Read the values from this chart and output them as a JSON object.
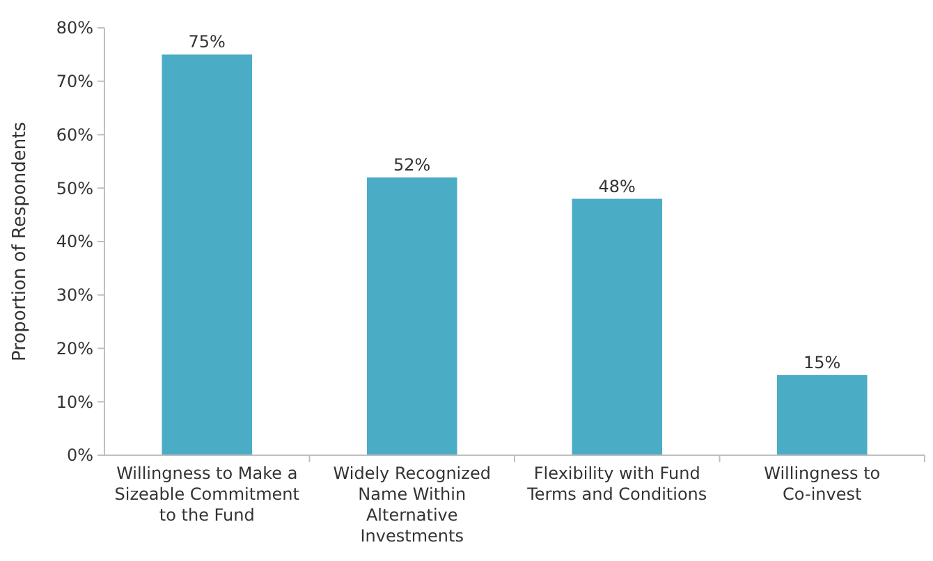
{
  "chart_data": {
    "type": "bar",
    "ylabel": "Proportion of Respondents",
    "categories": [
      "Willingness to Make a Sizeable Commitment to the Fund",
      "Widely Recognized Name Within Alternative Investments",
      "Flexibility with Fund Terms and Conditions",
      "Willingness to Co-invest"
    ],
    "values": [
      75,
      52,
      48,
      15
    ],
    "color": "#4bacc6",
    "value_labels": [
      "75%",
      "52%",
      "48%",
      "15%"
    ],
    "ylim": [
      0,
      80
    ],
    "yticks": [
      {
        "value": 0,
        "label": "0%"
      },
      {
        "value": 10,
        "label": "10%"
      },
      {
        "value": 20,
        "label": "20%"
      },
      {
        "value": 30,
        "label": "30%"
      },
      {
        "value": 40,
        "label": "40%"
      },
      {
        "value": 50,
        "label": "50%"
      },
      {
        "value": 60,
        "label": "60%"
      },
      {
        "value": 70,
        "label": "70%"
      },
      {
        "value": 80,
        "label": "80%"
      }
    ],
    "grid": false
  }
}
